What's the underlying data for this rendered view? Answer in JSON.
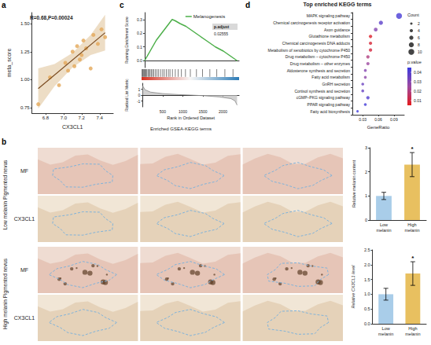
{
  "chart_data": [
    {
      "panel": "a",
      "type": "scatter",
      "annotation": "R=0.68,P=0.00024",
      "x_label": "CX3CL1",
      "y_label": "meta_score",
      "x": [
        6.72,
        6.85,
        6.95,
        7.02,
        7.05,
        7.1,
        7.12,
        7.15,
        7.18,
        7.2,
        7.22,
        7.25,
        7.3,
        7.33,
        7.38,
        7.42,
        7.46
      ],
      "values": [
        0.78,
        1.02,
        0.95,
        1.15,
        1.08,
        1.25,
        1.12,
        1.3,
        1.18,
        1.22,
        1.35,
        1.28,
        1.1,
        1.4,
        1.32,
        1.45,
        1.38
      ],
      "color": "#e3a857",
      "fit": {
        "x": [
          6.72,
          7.46
        ],
        "y": [
          0.92,
          1.42
        ]
      },
      "band": {
        "x": [
          6.72,
          6.9,
          7.1,
          7.3,
          7.46
        ],
        "lower": [
          0.74,
          0.94,
          1.11,
          1.22,
          1.26
        ],
        "upper": [
          1.1,
          1.14,
          1.24,
          1.4,
          1.58
        ]
      },
      "xlim": [
        6.65,
        7.55
      ],
      "xticks": [
        6.8,
        {
          "value": 7,
          "label": "7.0"
        },
        7.2,
        7.4
      ],
      "ylim": [
        0.7,
        1.6
      ],
      "yticks": [
        0.75,
        {
          "value": 1,
          "label": "1.00"
        },
        1.25,
        {
          "value": 1.5,
          "label": "1.50"
        }
      ],
      "grid": false
    },
    {
      "panel": "c",
      "type": "gsea",
      "title": "Enriched GSEA-KEGG terms",
      "gene_set": "Melanogenesis",
      "stat_label": "p.adjust",
      "stat_value": 0.02555,
      "x_label": "Rank in Ordered Dataset",
      "y_label": "Running Enrichment Score",
      "y2_label": "Ranked List Metric",
      "color": "#4daf4a",
      "running_score": {
        "x": [
          0,
          60,
          120,
          180,
          240,
          300,
          380,
          460,
          540,
          620,
          700,
          780,
          900,
          1050,
          1200,
          1400,
          1600,
          1800,
          2000,
          2200,
          2350
        ],
        "y": [
          0,
          0.03,
          0.06,
          0.09,
          0.12,
          0.15,
          0.18,
          0.21,
          0.24,
          0.27,
          0.3,
          0.29,
          0.27,
          0.25,
          0.22,
          0.18,
          0.14,
          0.1,
          0.07,
          0.03,
          0
        ]
      },
      "hits": [
        12,
        25,
        40,
        58,
        75,
        90,
        110,
        130,
        160,
        185,
        210,
        240,
        270,
        300,
        340,
        380,
        420,
        470,
        520,
        560,
        610,
        660,
        700,
        760,
        830,
        900,
        980,
        1080,
        1200,
        1350,
        1500,
        1680,
        1850,
        2050,
        2250
      ],
      "ranked_metric": {
        "x": [
          0,
          60,
          200,
          500,
          900,
          1200,
          1500,
          1900,
          2200,
          2300,
          2350
        ],
        "y": [
          1.6,
          0.9,
          0.5,
          0.25,
          0.08,
          0,
          -0.1,
          -0.3,
          -0.6,
          -1.0,
          -1.7
        ]
      },
      "xlim": [
        0,
        2400
      ],
      "xticks": [
        500,
        1000,
        1500,
        2000
      ],
      "ylim": [
        -0.05,
        0.35
      ],
      "yticks": [
        {
          "value": 0,
          "label": "0.0"
        },
        0.1,
        0.2,
        0.3
      ],
      "y2lim": [
        -2,
        2
      ],
      "y2ticks": [
        -1,
        0,
        1
      ],
      "grid": false
    },
    {
      "panel": "d",
      "type": "dot",
      "title": "Top enriched KEGG terms",
      "x_label": "GeneRatio",
      "size_label": "Count",
      "color_label": "p.value",
      "categories": [
        "MAPK signaling pathway",
        "Chemical carcinogenesis receptor activation",
        "Axon guidance",
        "Glutathione metabolism",
        "Chemical carcinogenesis DNA adducts",
        "Metabolism of xenobiotics by cytochrome P450",
        "Drug metabolism – cytochrome P450",
        "Drug metabolism – other enzymes",
        "Aldosterone synthesis and secretion",
        "Fatty acid metabolism",
        "GnRH secretion",
        "Cortisol synthesis and secretion",
        "cGMP–PKG signaling pathway",
        "PPAR signaling pathway",
        "Fatty acid biosynthesis"
      ],
      "values": [
        0.1,
        0.065,
        0.055,
        0.045,
        0.045,
        0.045,
        0.04,
        0.04,
        0.035,
        0.035,
        0.03,
        0.03,
        0.04,
        0.035,
        0.02
      ],
      "count": [
        10,
        6,
        5,
        4,
        4,
        4,
        4,
        4,
        3,
        3,
        3,
        3,
        4,
        3,
        2
      ],
      "p_value": [
        0.042,
        0.038,
        0.03,
        0.007,
        0.009,
        0.01,
        0.02,
        0.025,
        0.03,
        0.028,
        0.035,
        0.036,
        0.04,
        0.043,
        0.044
      ],
      "p_range": [
        0.005,
        0.045
      ],
      "p_ticks": [
        0.01,
        0.02,
        0.03,
        0.04
      ],
      "count_ticks": [
        2,
        4,
        6,
        8,
        10
      ],
      "xlim": [
        0.01,
        0.11
      ],
      "xticks": [
        0.03,
        0.06,
        0.09
      ],
      "grid": false
    },
    {
      "type": "bar",
      "y_label": "Relative melanin content",
      "categories": [
        "Low melanin",
        "High melanin"
      ],
      "values": [
        1.0,
        2.3
      ],
      "errors": [
        0.15,
        0.5
      ],
      "colors": [
        "#a9cde9",
        "#e8c060"
      ],
      "annotations": [
        {
          "category": "High melanin",
          "text": "*"
        }
      ],
      "ylim": [
        0,
        3
      ],
      "yticks": [
        0,
        1,
        2,
        3
      ],
      "grid": false
    },
    {
      "type": "bar",
      "y_label": "Relative CX3CL1 level",
      "categories": [
        "Low melanin",
        "High melanin"
      ],
      "values": [
        1.0,
        1.7
      ],
      "errors": [
        0.2,
        0.4
      ],
      "colors": [
        "#a9cde9",
        "#e8c060"
      ],
      "annotations": [
        {
          "category": "High melanin",
          "text": "*"
        }
      ],
      "ylim": [
        0,
        2.5
      ],
      "yticks": [
        {
          "value": 0,
          "label": "0.0"
        },
        0.5,
        {
          "value": 1,
          "label": "1.0"
        },
        1.5,
        {
          "value": 2,
          "label": "2.0"
        },
        2.5
      ],
      "grid": false
    }
  ],
  "histology": {
    "panel": "b",
    "groups": [
      {
        "label": "Low melanin Pigmented nevus",
        "rows": [
          "MF",
          "CX3CL1"
        ]
      },
      {
        "label": "High melanin Pigmented nevus",
        "rows": [
          "MF",
          "CX3CL1"
        ]
      }
    ]
  }
}
